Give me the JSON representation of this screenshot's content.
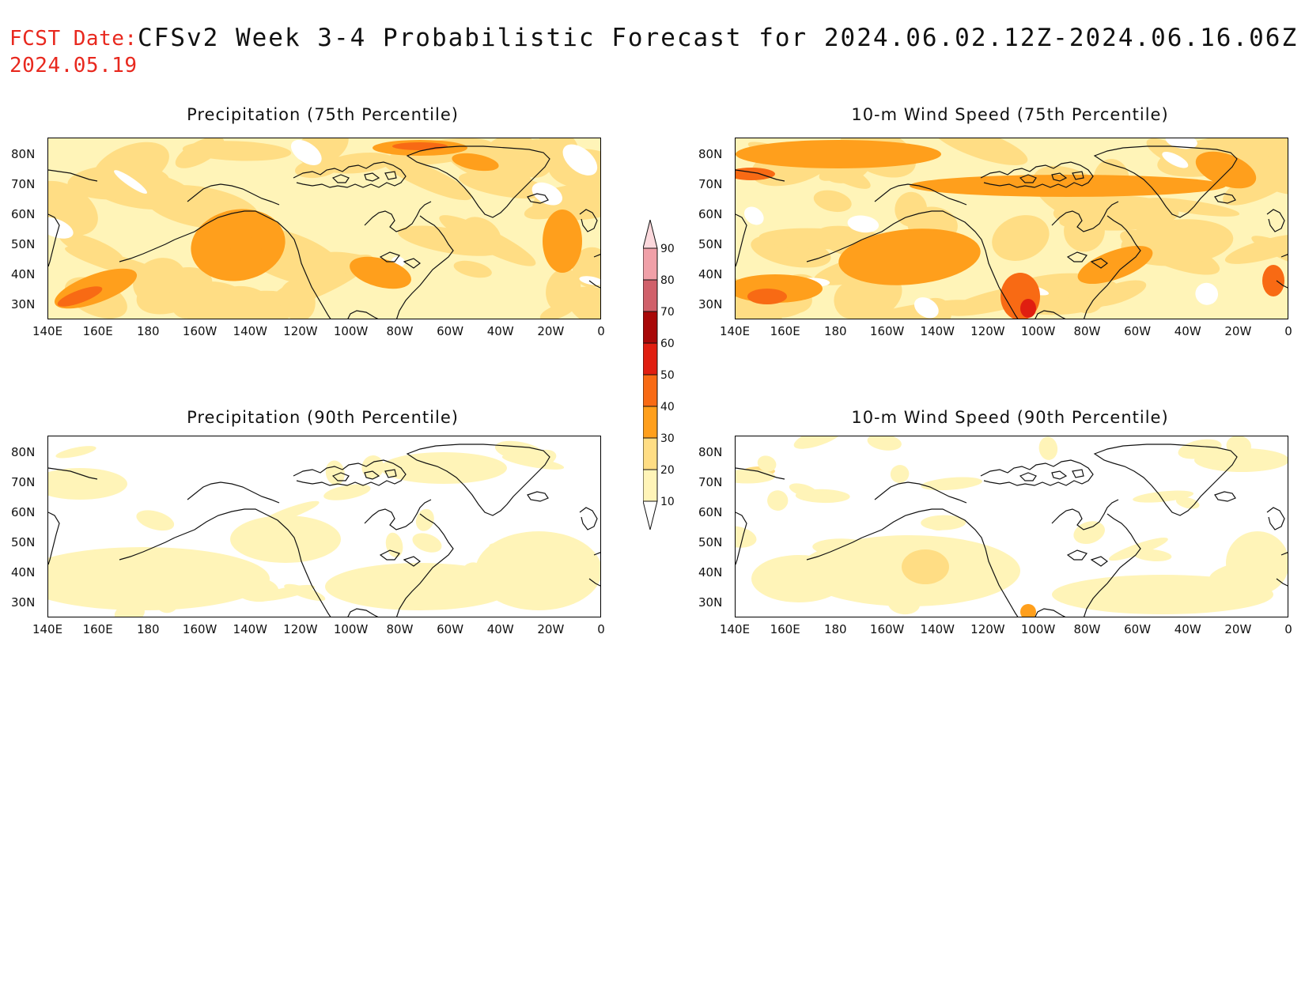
{
  "header": {
    "fcst_label": "FCST Date:",
    "fcst_date": "2024.05.19",
    "title": "CFSv2 Week 3-4 Probabilistic Forecast for 2024.06.02.12Z-2024.06.16.06Z"
  },
  "panels": [
    {
      "title": "Precipitation (75th Percentile)",
      "variable": "precipitation",
      "percentile": "75th",
      "intensity": "high"
    },
    {
      "title": "10-m Wind Speed (75th Percentile)",
      "variable": "wind",
      "percentile": "75th",
      "intensity": "high"
    },
    {
      "title": "Precipitation (90th Percentile)",
      "variable": "precipitation",
      "percentile": "90th",
      "intensity": "low"
    },
    {
      "title": "10-m Wind Speed (90th Percentile)",
      "variable": "wind",
      "percentile": "90th",
      "intensity": "low"
    }
  ],
  "axes": {
    "lat_labels": [
      "80N",
      "70N",
      "60N",
      "50N",
      "40N",
      "30N"
    ],
    "lon_labels": [
      "140E",
      "160E",
      "180",
      "160W",
      "140W",
      "120W",
      "100W",
      "80W",
      "60W",
      "40W",
      "20W",
      "0"
    ]
  },
  "colorbar": {
    "levels": [
      "10",
      "20",
      "30",
      "40",
      "50",
      "60",
      "70",
      "80",
      "90"
    ],
    "colors": [
      "#ffffff",
      "#fff4b8",
      "#ffdd84",
      "#ff9f1c",
      "#f86a14",
      "#e01e10",
      "#a80808",
      "#d0606a",
      "#f0a0a8",
      "#fbd8dc"
    ]
  }
}
